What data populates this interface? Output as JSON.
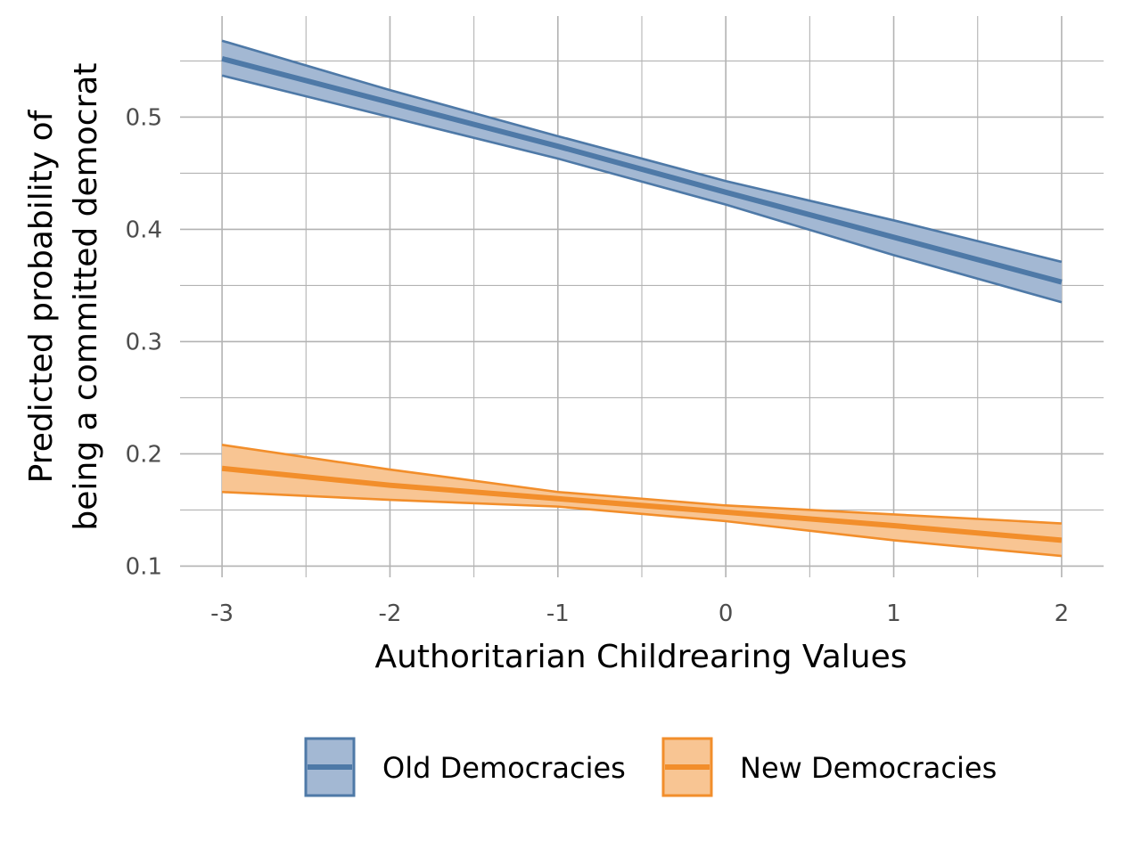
{
  "chart_data": {
    "type": "line",
    "title": "",
    "xlabel": "Authoritarian Childrearing Values",
    "ylabel_lines": [
      "Predicted probability of",
      "being a committed democrat"
    ],
    "xlim": [
      -3.25,
      2.25
    ],
    "ylim": [
      0.09,
      0.59
    ],
    "x_ticks": [
      -3,
      -2,
      -1,
      0,
      1,
      2
    ],
    "x_tick_labels": [
      "-3",
      "-2",
      "-1",
      "0",
      "1",
      "2"
    ],
    "y_ticks": [
      0.1,
      0.2,
      0.3,
      0.4,
      0.5
    ],
    "y_tick_labels": [
      "0.1",
      "0.2",
      "0.3",
      "0.4",
      "0.5"
    ],
    "grid": true,
    "legend_position": "bottom",
    "x": [
      -3,
      -2,
      -1,
      0,
      1,
      2
    ],
    "series": [
      {
        "name": "Old Democracies",
        "color": "#4E79A7",
        "fill": "#A3B8D3",
        "values": [
          0.552,
          0.513,
          0.474,
          0.433,
          0.393,
          0.353
        ],
        "lower": [
          0.537,
          0.5,
          0.463,
          0.422,
          0.377,
          0.335
        ],
        "upper": [
          0.568,
          0.524,
          0.483,
          0.443,
          0.408,
          0.371
        ]
      },
      {
        "name": "New Democracies",
        "color": "#F28E2B",
        "fill": "#F8C593",
        "values": [
          0.187,
          0.172,
          0.16,
          0.148,
          0.136,
          0.123
        ],
        "lower": [
          0.166,
          0.159,
          0.153,
          0.14,
          0.123,
          0.109
        ],
        "upper": [
          0.208,
          0.186,
          0.166,
          0.154,
          0.146,
          0.138
        ]
      }
    ]
  }
}
